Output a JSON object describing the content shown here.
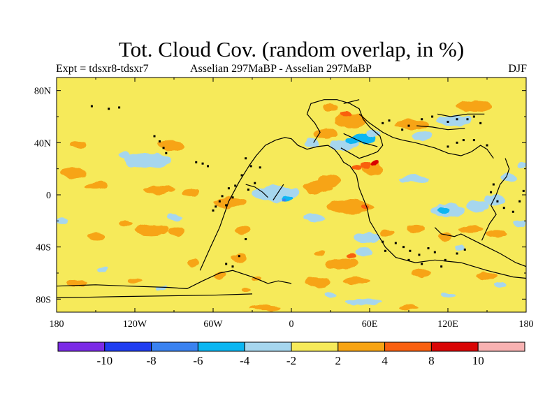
{
  "chart_data": {
    "type": "heatmap",
    "title": "Tot. Cloud Cov. (random overlap, in %)",
    "subtitle_left": "Expt = tdsxr8-tdsxr7",
    "subtitle_center": "Asselian 297MaBP - Asselian 297MaBP",
    "subtitle_right": "DJF",
    "xlim": [
      -180,
      180
    ],
    "ylim": [
      -90,
      90
    ],
    "x_ticks": [
      {
        "value": -180,
        "label": "180"
      },
      {
        "value": -120,
        "label": "120W"
      },
      {
        "value": -60,
        "label": "60W"
      },
      {
        "value": 0,
        "label": "0"
      },
      {
        "value": 60,
        "label": "60E"
      },
      {
        "value": 120,
        "label": "120E"
      },
      {
        "value": 180,
        "label": "180"
      }
    ],
    "y_ticks": [
      {
        "value": 80,
        "label": "80N"
      },
      {
        "value": 40,
        "label": "40N"
      },
      {
        "value": 0,
        "label": "0"
      },
      {
        "value": -40,
        "label": "40S"
      },
      {
        "value": -80,
        "label": "80S"
      }
    ],
    "colorbar": {
      "colors": [
        "#7b2be6",
        "#1f3df0",
        "#3a82f0",
        "#0bb6f2",
        "#a6d6ee",
        "#f6ea5a",
        "#f7a414",
        "#f96010",
        "#d90606",
        "#f8b2b2"
      ],
      "labels": [
        "-10",
        "-8",
        "-6",
        "-4",
        "-2",
        "2",
        "4",
        "8",
        "10"
      ]
    },
    "background_color": "#f6ea5a",
    "anomalies": [
      {
        "lon": -92,
        "lat": 38,
        "rlon": 10,
        "rlat": 4,
        "color": "#f7a414"
      },
      {
        "lon": -163,
        "lat": 38,
        "rlon": 6,
        "rlat": 3,
        "color": "#f7a414"
      },
      {
        "lon": -110,
        "lat": 26,
        "rlon": 18,
        "rlat": 6,
        "color": "#a6d6ee"
      },
      {
        "lon": -128,
        "lat": 30,
        "rlon": 4,
        "rlat": 3,
        "color": "#a6d6ee"
      },
      {
        "lon": -167,
        "lat": 17,
        "rlon": 10,
        "rlat": 4,
        "color": "#f7a414"
      },
      {
        "lon": -150,
        "lat": 7,
        "rlon": 9,
        "rlat": 3,
        "color": "#f7a414"
      },
      {
        "lon": -101,
        "lat": 4,
        "rlon": 12,
        "rlat": 3,
        "color": "#f7a414"
      },
      {
        "lon": -77,
        "lat": 2,
        "rlon": 7,
        "rlat": 3,
        "color": "#f7a414"
      },
      {
        "lon": -47,
        "lat": -6,
        "rlon": 12,
        "rlat": 4,
        "color": "#f7a414"
      },
      {
        "lon": -12,
        "lat": 1,
        "rlon": 18,
        "rlat": 6,
        "color": "#a6d6ee"
      },
      {
        "lon": -3,
        "lat": -3,
        "rlon": 4,
        "rlat": 2,
        "color": "#0bb6f2"
      },
      {
        "lon": -5,
        "lat": -4,
        "rlon": 1.5,
        "rlat": 1,
        "color": "#3a82f0"
      },
      {
        "lon": 20,
        "lat": 6,
        "rlon": 11,
        "rlat": 5,
        "color": "#f7a414"
      },
      {
        "lon": 30,
        "lat": 11,
        "rlon": 9,
        "rlat": 4,
        "color": "#f7a414"
      },
      {
        "lon": 45,
        "lat": -9,
        "rlon": 18,
        "rlat": 5,
        "color": "#f7a414"
      },
      {
        "lon": 57,
        "lat": -9,
        "rlon": 3,
        "rlat": 2,
        "color": "#f96010"
      },
      {
        "lon": 62,
        "lat": 20,
        "rlon": 8,
        "rlat": 5,
        "color": "#f7a414"
      },
      {
        "lon": 57,
        "lat": 23,
        "rlon": 4,
        "rlat": 3,
        "color": "#f96010"
      },
      {
        "lon": 64,
        "lat": 24,
        "rlon": 3,
        "rlat": 2,
        "color": "#d90606"
      },
      {
        "lon": 50,
        "lat": 21,
        "rlon": 4,
        "rlat": 2,
        "color": "#f96010"
      },
      {
        "lon": 40,
        "lat": 38,
        "rlon": 11,
        "rlat": 4,
        "color": "#a6d6ee"
      },
      {
        "lon": 55,
        "lat": 43,
        "rlon": 10,
        "rlat": 4,
        "color": "#0bb6f2"
      },
      {
        "lon": 46,
        "lat": 41,
        "rlon": 5,
        "rlat": 3,
        "color": "#0bb6f2"
      },
      {
        "lon": 63,
        "lat": 47,
        "rlon": 5,
        "rlat": 3,
        "color": "#a6d6ee"
      },
      {
        "lon": 15,
        "lat": 40,
        "rlon": 5,
        "rlat": 4,
        "color": "#a6d6ee"
      },
      {
        "lon": 27,
        "lat": 47,
        "rlon": 9,
        "rlat": 4,
        "color": "#f7a414"
      },
      {
        "lon": 45,
        "lat": 57,
        "rlon": 12,
        "rlat": 6,
        "color": "#f7a414"
      },
      {
        "lon": 30,
        "lat": 67,
        "rlon": 6,
        "rlat": 3,
        "color": "#f7a414"
      },
      {
        "lon": 42,
        "lat": 62,
        "rlon": 4,
        "rlat": 2,
        "color": "#f96010"
      },
      {
        "lon": 93,
        "lat": 54,
        "rlon": 13,
        "rlat": 4,
        "color": "#f7a414"
      },
      {
        "lon": 100,
        "lat": 45,
        "rlon": 7,
        "rlat": 3,
        "color": "#a6d6ee"
      },
      {
        "lon": 125,
        "lat": 57,
        "rlon": 14,
        "rlat": 4,
        "color": "#a6d6ee"
      },
      {
        "lon": 140,
        "lat": 68,
        "rlon": 14,
        "rlat": 4,
        "color": "#f7a414"
      },
      {
        "lon": 95,
        "lat": 12,
        "rlon": 11,
        "rlat": 3,
        "color": "#a6d6ee"
      },
      {
        "lon": 120,
        "lat": -12,
        "rlon": 13,
        "rlat": 6,
        "color": "#a6d6ee"
      },
      {
        "lon": 116,
        "lat": -12,
        "rlon": 5,
        "rlat": 3,
        "color": "#0bb6f2"
      },
      {
        "lon": 143,
        "lat": -9,
        "rlon": 9,
        "rlat": 4,
        "color": "#a6d6ee"
      },
      {
        "lon": 156,
        "lat": -4,
        "rlon": 8,
        "rlat": 4,
        "color": "#a6d6ee"
      },
      {
        "lon": 167,
        "lat": 13,
        "rlon": 6,
        "rlat": 3,
        "color": "#a6d6ee"
      },
      {
        "lon": 177,
        "lat": 23,
        "rlon": 4,
        "rlat": 2,
        "color": "#a6d6ee"
      },
      {
        "lon": 137,
        "lat": -26,
        "rlon": 9,
        "rlat": 3,
        "color": "#f7a414"
      },
      {
        "lon": 95,
        "lat": -26,
        "rlon": 7,
        "rlat": 3,
        "color": "#f7a414"
      },
      {
        "lon": 118,
        "lat": -32,
        "rlon": 5,
        "rlat": 3,
        "color": "#f7a414"
      },
      {
        "lon": 157,
        "lat": -30,
        "rlon": 8,
        "rlat": 3,
        "color": "#f7a414"
      },
      {
        "lon": 129,
        "lat": -40,
        "rlon": 4,
        "rlat": 2,
        "color": "#a6d6ee"
      },
      {
        "lon": 175,
        "lat": -22,
        "rlon": 5,
        "rlat": 3,
        "color": "#a6d6ee"
      },
      {
        "lon": -107,
        "lat": -27,
        "rlon": 13,
        "rlat": 4,
        "color": "#f7a414"
      },
      {
        "lon": -88,
        "lat": -28,
        "rlon": 6,
        "rlat": 3,
        "color": "#f7a414"
      },
      {
        "lon": -150,
        "lat": -32,
        "rlon": 6,
        "rlat": 3,
        "color": "#f7a414"
      },
      {
        "lon": -127,
        "lat": -22,
        "rlon": 5,
        "rlat": 2,
        "color": "#f7a414"
      },
      {
        "lon": -176,
        "lat": -20,
        "rlon": 5,
        "rlat": 3,
        "color": "#a6d6ee"
      },
      {
        "lon": -90,
        "lat": -17,
        "rlon": 6,
        "rlat": 3,
        "color": "#a6d6ee"
      },
      {
        "lon": -38,
        "lat": -27,
        "rlon": 6,
        "rlat": 3,
        "color": "#f7a414"
      },
      {
        "lon": 18,
        "lat": -18,
        "rlon": 8,
        "rlat": 3,
        "color": "#a6d6ee"
      },
      {
        "lon": 58,
        "lat": -33,
        "rlon": 10,
        "rlat": 4,
        "color": "#a6d6ee"
      },
      {
        "lon": 73,
        "lat": -29,
        "rlon": 6,
        "rlat": 3,
        "color": "#f7a414"
      },
      {
        "lon": -75,
        "lat": -52,
        "rlon": 5,
        "rlat": 3,
        "color": "#f7a414"
      },
      {
        "lon": -40,
        "lat": -48,
        "rlon": 6,
        "rlat": 3,
        "color": "#f7a414"
      },
      {
        "lon": 22,
        "lat": -45,
        "rlon": 4,
        "rlat": 2,
        "color": "#f7a414"
      },
      {
        "lon": 38,
        "lat": -53,
        "rlon": 13,
        "rlat": 4,
        "color": "#f7a414"
      },
      {
        "lon": 56,
        "lat": -44,
        "rlon": 7,
        "rlat": 3,
        "color": "#a6d6ee"
      },
      {
        "lon": 46,
        "lat": -47,
        "rlon": 3,
        "rlat": 2,
        "color": "#f96010"
      },
      {
        "lon": 20,
        "lat": -67,
        "rlon": 9,
        "rlat": 4,
        "color": "#f7a414"
      },
      {
        "lon": 50,
        "lat": -66,
        "rlon": 10,
        "rlat": 3,
        "color": "#f7a414"
      },
      {
        "lon": 100,
        "lat": -60,
        "rlon": 8,
        "rlat": 3,
        "color": "#f7a414"
      },
      {
        "lon": 150,
        "lat": -62,
        "rlon": 8,
        "rlat": 3,
        "color": "#f7a414"
      },
      {
        "lon": -55,
        "lat": -62,
        "rlon": 5,
        "rlat": 3,
        "color": "#f7a414"
      },
      {
        "lon": -27,
        "lat": -64,
        "rlon": 4,
        "rlat": 2,
        "color": "#f7a414"
      },
      {
        "lon": -120,
        "lat": -66,
        "rlon": 6,
        "rlat": 2,
        "color": "#f7a414"
      },
      {
        "lon": -165,
        "lat": -68,
        "rlon": 8,
        "rlat": 3,
        "color": "#f7a414"
      },
      {
        "lon": -100,
        "lat": -71,
        "rlon": 4,
        "rlat": 2,
        "color": "#a6d6ee"
      },
      {
        "lon": -35,
        "lat": -73,
        "rlon": 4,
        "rlat": 2,
        "color": "#f7a414"
      },
      {
        "lon": 30,
        "lat": -77,
        "rlon": 5,
        "rlat": 2,
        "color": "#a6d6ee"
      },
      {
        "lon": 55,
        "lat": -82,
        "rlon": 14,
        "rlat": 2,
        "color": "#a6d6ee"
      },
      {
        "lon": 120,
        "lat": -77,
        "rlon": 6,
        "rlat": 2,
        "color": "#a6d6ee"
      },
      {
        "lon": -20,
        "lat": -87,
        "rlon": 12,
        "rlat": 2,
        "color": "#f7a414"
      },
      {
        "lon": 90,
        "lat": -86,
        "rlon": 8,
        "rlat": 2,
        "color": "#f7a414"
      },
      {
        "lon": -145,
        "lat": -57,
        "rlon": 4,
        "rlat": 2,
        "color": "#a6d6ee"
      },
      {
        "lon": 160,
        "lat": -70,
        "rlon": 5,
        "rlat": 2,
        "color": "#a6d6ee"
      }
    ],
    "coastlines": [
      [
        [
          -180,
          -70
        ],
        [
          -150,
          -69
        ],
        [
          -125,
          -70
        ],
        [
          -95,
          -71
        ],
        [
          -80,
          -72
        ],
        [
          -68,
          -66
        ],
        [
          -55,
          -60
        ],
        [
          -45,
          -58
        ],
        [
          -30,
          -63
        ],
        [
          -18,
          -68
        ],
        [
          -10,
          -66
        ],
        [
          0,
          -68
        ]
      ],
      [
        [
          -180,
          -79
        ],
        [
          -130,
          -78
        ],
        [
          -60,
          -77
        ],
        [
          -30,
          -76
        ]
      ],
      [
        [
          -70,
          -58
        ],
        [
          -62,
          -40
        ],
        [
          -55,
          -25
        ],
        [
          -48,
          -5
        ],
        [
          -40,
          10
        ],
        [
          -32,
          23
        ],
        [
          -27,
          30
        ],
        [
          -20,
          38
        ],
        [
          -12,
          42
        ],
        [
          -5,
          44
        ],
        [
          0,
          43
        ],
        [
          5,
          38
        ],
        [
          12,
          35
        ],
        [
          20,
          37
        ],
        [
          28,
          38
        ],
        [
          33,
          35
        ],
        [
          37,
          30
        ],
        [
          40,
          25
        ],
        [
          45,
          22
        ],
        [
          50,
          15
        ],
        [
          52,
          5
        ],
        [
          58,
          -10
        ],
        [
          60,
          -20
        ],
        [
          66,
          -30
        ],
        [
          72,
          -40
        ],
        [
          80,
          -48
        ],
        [
          95,
          -52
        ],
        [
          110,
          -50
        ],
        [
          130,
          -52
        ],
        [
          150,
          -58
        ],
        [
          170,
          -63
        ],
        [
          180,
          -64
        ]
      ],
      [
        [
          -35,
          8
        ],
        [
          -28,
          6
        ],
        [
          -22,
          2
        ],
        [
          -18,
          -2
        ]
      ],
      [
        [
          -14,
          -4
        ],
        [
          -10,
          2
        ],
        [
          -6,
          8
        ]
      ],
      [
        [
          17,
          40
        ],
        [
          22,
          48
        ],
        [
          18,
          55
        ],
        [
          12,
          62
        ],
        [
          15,
          70
        ],
        [
          25,
          73
        ],
        [
          35,
          73
        ],
        [
          45,
          70
        ],
        [
          52,
          66
        ],
        [
          55,
          58
        ],
        [
          60,
          52
        ],
        [
          68,
          45
        ],
        [
          70,
          38
        ],
        [
          66,
          33
        ],
        [
          58,
          30
        ],
        [
          52,
          28
        ],
        [
          45,
          32
        ],
        [
          38,
          36
        ]
      ],
      [
        [
          40,
          47
        ],
        [
          55,
          40
        ],
        [
          66,
          37
        ]
      ],
      [
        [
          52,
          62
        ],
        [
          60,
          55
        ],
        [
          70,
          48
        ],
        [
          78,
          44
        ],
        [
          85,
          42
        ],
        [
          95,
          40
        ],
        [
          110,
          36
        ],
        [
          120,
          32
        ],
        [
          130,
          30
        ],
        [
          138,
          33
        ],
        [
          145,
          38
        ],
        [
          150,
          35
        ],
        [
          155,
          28
        ]
      ],
      [
        [
          110,
          -25
        ],
        [
          115,
          -30
        ],
        [
          125,
          -32
        ],
        [
          130,
          -30
        ],
        [
          140,
          -35
        ],
        [
          150,
          -40
        ],
        [
          160,
          -45
        ],
        [
          172,
          -52
        ],
        [
          180,
          -55
        ]
      ],
      [
        [
          96,
          53
        ],
        [
          108,
          52
        ],
        [
          120,
          50
        ],
        [
          133,
          51
        ]
      ],
      [
        [
          112,
          62
        ],
        [
          122,
          60
        ],
        [
          135,
          62
        ],
        [
          148,
          62
        ]
      ],
      [
        [
          146,
          -35
        ],
        [
          152,
          -22
        ],
        [
          157,
          -15
        ],
        [
          153,
          -8
        ],
        [
          157,
          0
        ],
        [
          160,
          8
        ],
        [
          165,
          14
        ],
        [
          167,
          20
        ],
        [
          164,
          28
        ]
      ],
      [
        [
          40,
          70
        ],
        [
          52,
          73
        ]
      ]
    ],
    "coast_dots": [
      [
        -153,
        68
      ],
      [
        -140,
        66
      ],
      [
        -132,
        67
      ],
      [
        -105,
        45
      ],
      [
        -101,
        41
      ],
      [
        -98,
        36
      ],
      [
        -96,
        32
      ],
      [
        -73,
        25
      ],
      [
        -68,
        24
      ],
      [
        -64,
        22
      ],
      [
        -35,
        28
      ],
      [
        -38,
        15
      ],
      [
        -43,
        7
      ],
      [
        -48,
        5
      ],
      [
        -53,
        -1
      ],
      [
        -55,
        -5
      ],
      [
        -58,
        -9
      ],
      [
        -60,
        -12
      ],
      [
        -31,
        22
      ],
      [
        -24,
        21
      ],
      [
        -28,
        9
      ],
      [
        -33,
        4
      ],
      [
        -45,
        -2
      ],
      [
        -50,
        -8
      ],
      [
        -35,
        -34
      ],
      [
        -40,
        -47
      ],
      [
        -45,
        -55
      ],
      [
        -50,
        -53
      ],
      [
        70,
        -36
      ],
      [
        72,
        -43
      ],
      [
        80,
        -37
      ],
      [
        86,
        -40
      ],
      [
        91,
        -43
      ],
      [
        98,
        -46
      ],
      [
        105,
        -41
      ],
      [
        110,
        -44
      ],
      [
        118,
        -50
      ],
      [
        127,
        -45
      ],
      [
        133,
        -42
      ],
      [
        90,
        -50
      ],
      [
        100,
        -53
      ],
      [
        115,
        -55
      ],
      [
        120,
        37
      ],
      [
        127,
        40
      ],
      [
        132,
        42
      ],
      [
        140,
        42
      ],
      [
        150,
        38
      ],
      [
        120,
        56
      ],
      [
        127,
        58
      ],
      [
        135,
        58
      ],
      [
        140,
        60
      ],
      [
        145,
        55
      ],
      [
        155,
        8
      ],
      [
        153,
        2
      ],
      [
        158,
        -5
      ],
      [
        163,
        -10
      ],
      [
        170,
        -13
      ],
      [
        175,
        -5
      ],
      [
        178,
        3
      ],
      [
        70,
        55
      ],
      [
        75,
        57
      ],
      [
        85,
        50
      ],
      [
        90,
        53
      ],
      [
        100,
        58
      ],
      [
        108,
        60
      ]
    ]
  }
}
